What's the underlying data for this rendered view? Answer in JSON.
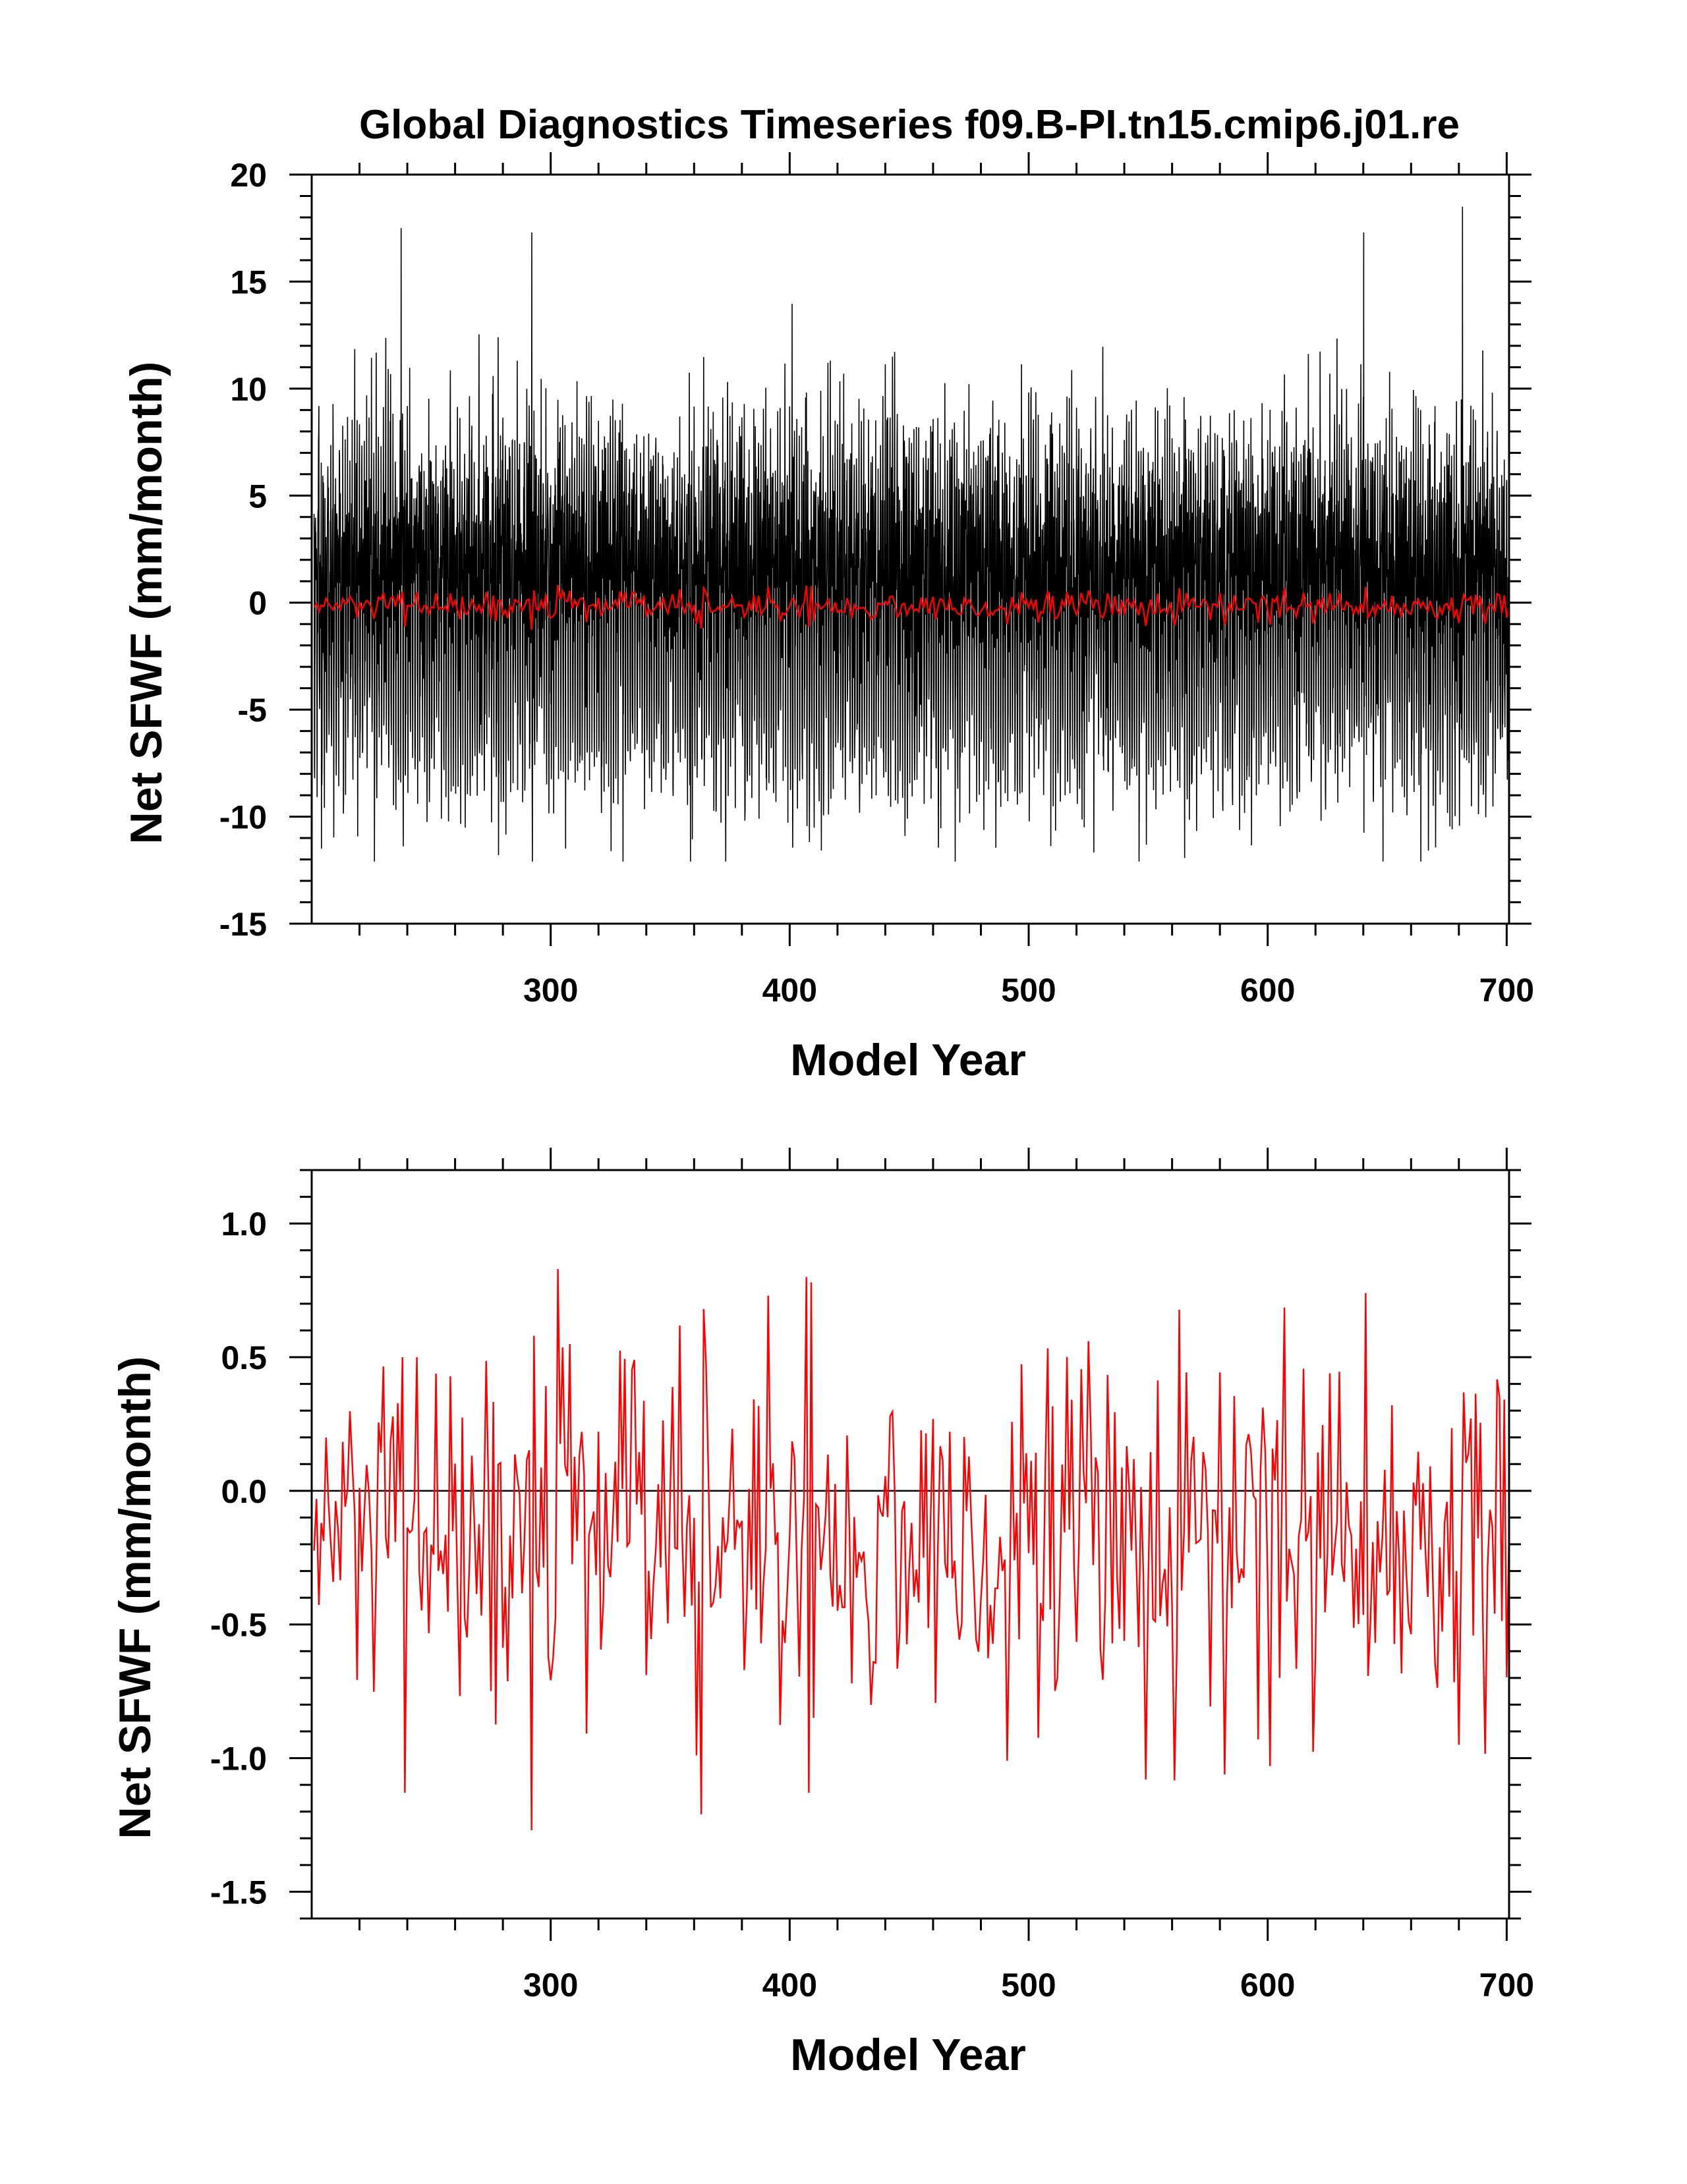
{
  "chart_data": [
    {
      "type": "line",
      "title": "Global Diagnostics Timeseries f09.B-PI.tn15.cmip6.j01.re",
      "xlabel": "Model Year",
      "ylabel": "Net SFWF (mm/month)",
      "xlim": [
        200,
        701
      ],
      "ylim": [
        -15,
        20
      ],
      "x_ticks": [
        300,
        400,
        500,
        600,
        700
      ],
      "y_ticks": [
        -15,
        -10,
        -5,
        0,
        5,
        10,
        15,
        20
      ],
      "y_tick_labels": [
        "-15",
        "-10",
        "-5",
        "0",
        "5",
        "10",
        "15",
        "20"
      ],
      "grid": false,
      "legend": "none",
      "series": [
        {
          "kind": "monthly",
          "color": "#000000",
          "x_start": 201,
          "x_end": 701,
          "approx_min": -12.1,
          "approx_max": 18.5,
          "typical_max": 14,
          "typical_min": -9,
          "mean": -0.2
        },
        {
          "kind": "annual",
          "color": "#ff0000",
          "ref": "annual_values"
        }
      ]
    },
    {
      "type": "line",
      "title": "",
      "xlabel": "Model Year",
      "ylabel": "Net SFWF (mm/month)",
      "xlim": [
        200,
        701
      ],
      "ylim": [
        -1.6,
        1.2
      ],
      "x_ticks": [
        300,
        400,
        500,
        600,
        700
      ],
      "y_ticks": [
        -1.5,
        -1.0,
        -0.5,
        0.0,
        0.5,
        1.0
      ],
      "y_tick_labels": [
        "-1.5",
        "-1.0",
        "-0.5",
        "0.0",
        "0.5",
        "1.0"
      ],
      "grid": false,
      "legend": "none",
      "reference_line": 0.0,
      "series": [
        {
          "kind": "annual",
          "color": "#ff0000",
          "x_start": 201,
          "approx_min": -1.27,
          "approx_max": 0.83,
          "ref": "annual_values"
        }
      ]
    }
  ]
}
